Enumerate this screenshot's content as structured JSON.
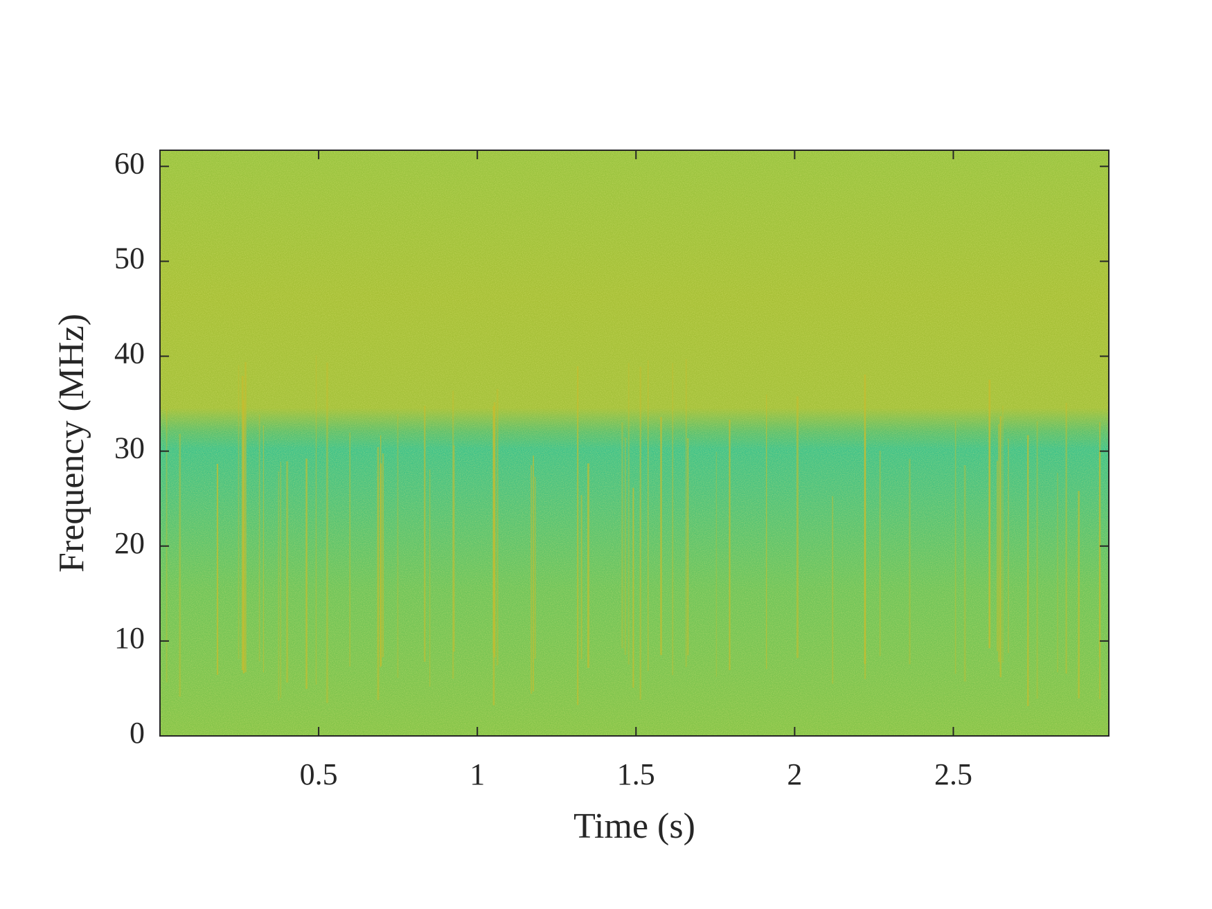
{
  "chart_data": {
    "type": "spectrogram",
    "xlabel": "Time (s)",
    "ylabel": "Frequency (MHz)",
    "xlim": [
      0,
      2.99
    ],
    "xticks": [
      0.5,
      1,
      1.5,
      2,
      2.5
    ],
    "ylim": [
      0,
      61.7
    ],
    "yticks": [
      0,
      10,
      20,
      30,
      40,
      50,
      60
    ]
  }
}
